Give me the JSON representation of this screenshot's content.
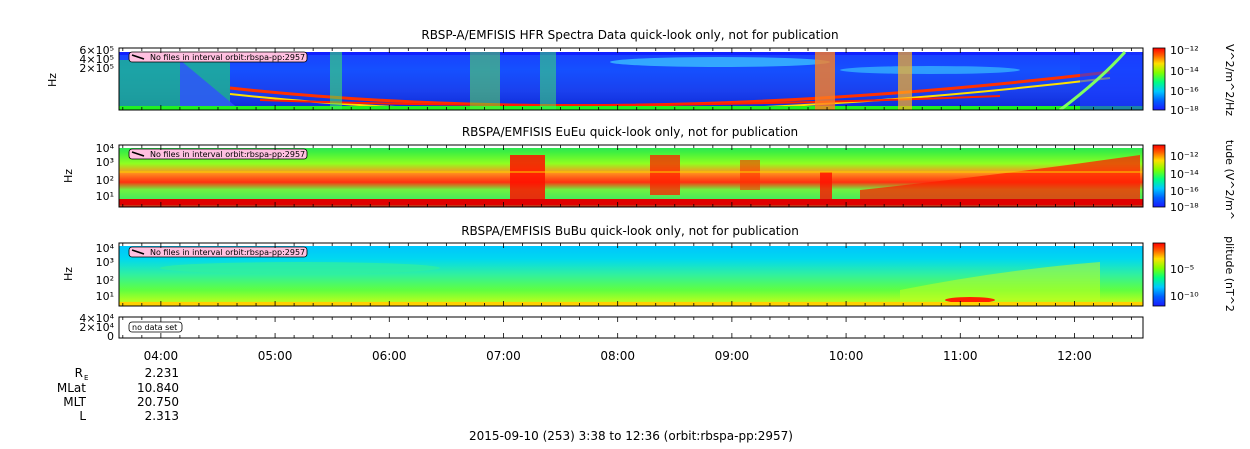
{
  "chart_data": [
    {
      "type": "heatmap",
      "title": "RBSP-A/EMFISIS  HFR Spectra Data quick-look only, not for publication",
      "ylabel": "Hz",
      "yticks": [
        "6×10⁵",
        "4×10⁵",
        "2×10⁵"
      ],
      "colorbar_label": "V^2/m^2/Hz",
      "colorbar_ticks": [
        "10⁻¹²",
        "10⁻¹⁴",
        "10⁻¹⁶",
        "10⁻¹⁸"
      ],
      "annotation": "No files in interval orbit:rbspa-pp:2957"
    },
    {
      "type": "heatmap",
      "title": "RBSPA/EMFISIS  EuEu quick-look only, not for publication",
      "ylabel": "Hz",
      "yticks": [
        "10⁴",
        "10³",
        "10²",
        "10¹"
      ],
      "colorbar_label": "tude (V^2/m^",
      "colorbar_ticks": [
        "10⁻¹²",
        "10⁻¹⁴",
        "10⁻¹⁶",
        "10⁻¹⁸"
      ],
      "annotation": "No files in interval orbit:rbspa-pp:2957"
    },
    {
      "type": "heatmap",
      "title": "RBSPA/EMFISIS  BuBu quick-look only, not for publication",
      "ylabel": "Hz",
      "yticks": [
        "10⁴",
        "10³",
        "10²",
        "10¹"
      ],
      "colorbar_label": "plitude (nT^2",
      "colorbar_ticks": [
        "10⁻⁵",
        "10⁻¹⁰"
      ],
      "annotation": "No files in interval orbit:rbspa-pp:2957"
    },
    {
      "type": "line",
      "title": "",
      "yticks": [
        "4×10⁴",
        "2×10⁴",
        "0"
      ],
      "annotation": "no data set"
    }
  ],
  "time_axis": {
    "ticks": [
      "04:00",
      "05:00",
      "06:00",
      "07:00",
      "08:00",
      "09:00",
      "10:00",
      "11:00",
      "12:00"
    ],
    "tick_hours": [
      4,
      5,
      6,
      7,
      8,
      9,
      10,
      11,
      12
    ],
    "start_hour": 3.6333,
    "end_hour": 12.6
  },
  "ephemeris": {
    "labels": [
      "R",
      "MLat",
      "MLT",
      "L"
    ],
    "r_subscript": "E",
    "values": [
      "2.231",
      "10.840",
      "20.750",
      "2.313"
    ]
  },
  "footer": "2015-09-10 (253) 3:38 to 12:36 (orbit:rbspa-pp:2957)"
}
